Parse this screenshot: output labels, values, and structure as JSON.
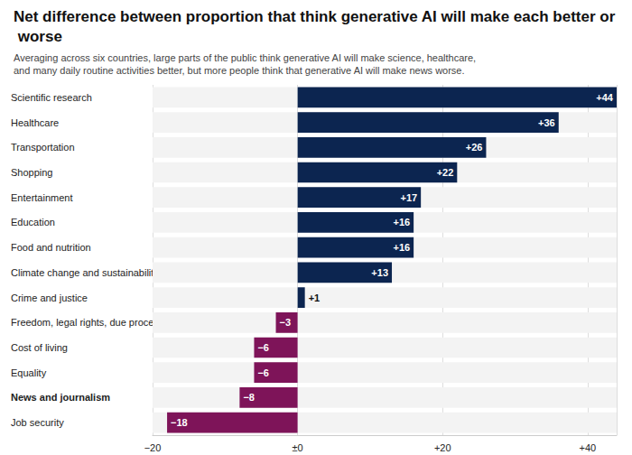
{
  "chart_data": {
    "type": "bar",
    "orientation": "horizontal",
    "title": "Net difference between proportion that think generative AI will make each better or worse",
    "subtitle": "Averaging across six countries, large parts of the public think generative AI will make science, healthcare, and many daily routine activities better, but more people think that generative AI will make news worse.",
    "categories": [
      "Scientific research",
      "Healthcare",
      "Transportation",
      "Shopping",
      "Entertainment",
      "Education",
      "Food and nutrition",
      "Climate change and sustainability",
      "Crime and justice",
      "Freedom, legal rights, due process",
      "Cost of living",
      "Equality",
      "News and journalism",
      "Job security"
    ],
    "values": [
      44,
      36,
      26,
      22,
      17,
      16,
      16,
      13,
      1,
      -3,
      -6,
      -6,
      -8,
      -18
    ],
    "value_labels": [
      "+44",
      "+36",
      "+26",
      "+22",
      "+17",
      "+16",
      "+16",
      "+13",
      "+1",
      "−3",
      "−6",
      "−6",
      "−8",
      "−18"
    ],
    "colors": [
      "#0c2550",
      "#0c2550",
      "#0c2550",
      "#0c2550",
      "#0c2550",
      "#0c2550",
      "#0c2550",
      "#0c2550",
      "#0c2550",
      "#7e1459",
      "#7e1459",
      "#7e1459",
      "#7e1459",
      "#7e1459"
    ],
    "xlim": [
      -20,
      44
    ],
    "xticks": [
      {
        "value": -20,
        "label": "−20"
      },
      {
        "value": 0,
        "label": "±0"
      },
      {
        "value": 20,
        "label": "+20"
      },
      {
        "value": 40,
        "label": "+40"
      }
    ],
    "grid": true,
    "data_labels": true
  }
}
